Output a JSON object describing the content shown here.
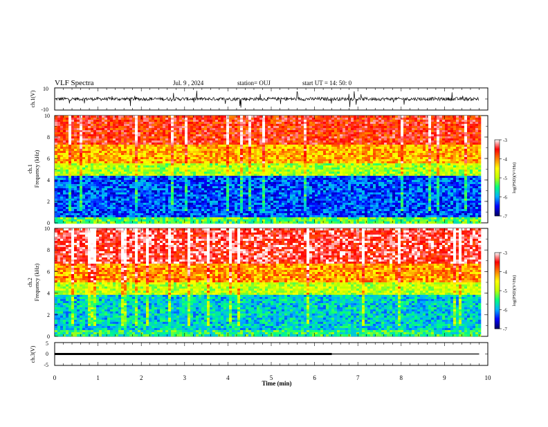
{
  "header": {
    "title": "VLF Spectra",
    "date": "Jul. 9 , 2024",
    "station": "station= OUJ",
    "start": "start UT = 14: 50: 0"
  },
  "chart_data": [
    {
      "type": "line",
      "ylabel": "ch.1(V)",
      "ylim": [
        -10,
        10
      ],
      "yticks": [
        "10",
        "-10"
      ],
      "xlim": [
        0,
        10
      ],
      "baseline_v": 0,
      "trace_color": "#000000"
    },
    {
      "type": "heatmap",
      "ylabel_top": "ch.1",
      "ylabel": "Frequency (kHz)",
      "ylim": [
        0,
        10
      ],
      "yticks": [
        "0",
        "2",
        "4",
        "6",
        "8",
        "10"
      ],
      "xlim": [
        0,
        10
      ],
      "data_end_min": 9.8,
      "colorbar": {
        "label": "log(PSD)(V²/Hz)",
        "range": [
          -7,
          -3
        ],
        "ticks": [
          "-3",
          "-4",
          "-5",
          "-6",
          "-7"
        ],
        "colors": [
          "#000060",
          "#0000ff",
          "#00b0ff",
          "#00ff80",
          "#c0ff00",
          "#ffff00",
          "#ff8000",
          "#ff0000",
          "#ffffff"
        ]
      },
      "bands": [
        {
          "f_range": [
            0,
            0.5
          ],
          "level": -5.3
        },
        {
          "f_range": [
            0.5,
            4.3
          ],
          "level": -6.3
        },
        {
          "f_range": [
            4.3,
            5.6
          ],
          "level": -5.0
        },
        {
          "f_range": [
            5.6,
            7.3
          ],
          "level": -4.2
        },
        {
          "f_range": [
            7.3,
            10
          ],
          "level": -3.6
        }
      ]
    },
    {
      "type": "heatmap",
      "ylabel_top": "ch.2",
      "ylabel": "Frequency (kHz)",
      "ylim": [
        0,
        10
      ],
      "yticks": [
        "0",
        "2",
        "4",
        "6",
        "8",
        "10"
      ],
      "xlim": [
        0,
        10
      ],
      "data_end_min": 9.8,
      "colorbar": {
        "label": "log(PSD)(V²/Hz)",
        "range": [
          -7,
          -3
        ],
        "ticks": [
          "-3",
          "-4",
          "-5",
          "-6",
          "-7"
        ],
        "colors": [
          "#000060",
          "#0000ff",
          "#00b0ff",
          "#00ff80",
          "#c0ff00",
          "#ffff00",
          "#ff8000",
          "#ff0000",
          "#ffffff"
        ]
      },
      "bands": [
        {
          "f_range": [
            0,
            0.5
          ],
          "level": -5.5
        },
        {
          "f_range": [
            0.5,
            3.8
          ],
          "level": -5.8
        },
        {
          "f_range": [
            3.8,
            5.0
          ],
          "level": -4.9
        },
        {
          "f_range": [
            5.0,
            6.8
          ],
          "level": -4.1
        },
        {
          "f_range": [
            6.8,
            10
          ],
          "level": -3.4
        }
      ]
    },
    {
      "type": "line",
      "ylabel": "ch.3(V)",
      "ylim": [
        -5,
        5
      ],
      "yticks": [
        "5",
        "0",
        "-5"
      ],
      "xlim": [
        0,
        10
      ],
      "xlabel": "Time (min)",
      "xticks": [
        "0",
        "1",
        "2",
        "3",
        "4",
        "5",
        "6",
        "7",
        "8",
        "9",
        "10"
      ],
      "segments": [
        {
          "x": [
            0,
            6.4
          ],
          "y": 0,
          "weight": "thick"
        },
        {
          "x": [
            6.4,
            9.8
          ],
          "y": 0,
          "weight": "thin"
        }
      ]
    }
  ]
}
